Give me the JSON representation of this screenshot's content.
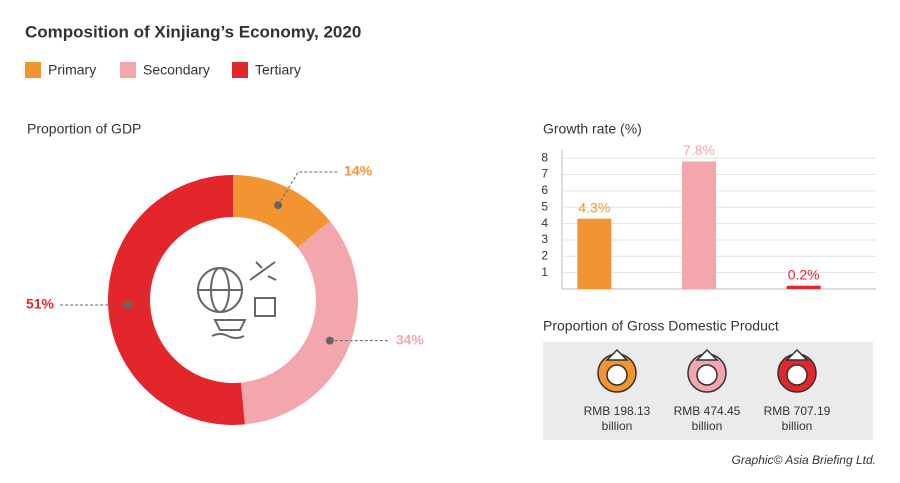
{
  "title": "Composition of Xinjiang’s Economy, 2020",
  "credit": "Graphic© Asia Briefing Ltd.",
  "chart_data": [
    {
      "type": "pie",
      "title": "Proportion of GDP",
      "categories": [
        "Primary",
        "Secondary",
        "Tertiary"
      ],
      "values": [
        14,
        34,
        51
      ],
      "value_labels": [
        "14%",
        "34%",
        "51%"
      ],
      "colors": [
        "#f39433",
        "#f4a6ad",
        "#e3262b"
      ],
      "donut": true
    },
    {
      "type": "bar",
      "title": "Growth rate (%)",
      "categories": [
        null,
        null,
        null
      ],
      "values": [
        4.3,
        7.8,
        0.2
      ],
      "value_labels": [
        "4.3%",
        "7.8%",
        "0.2%"
      ],
      "colors": [
        "#f39433",
        "#f4a6ad",
        "#e3262b"
      ],
      "ylim": [
        0,
        8.5
      ],
      "yticks": [
        1,
        2,
        3,
        4,
        5,
        6,
        7,
        8
      ],
      "grid": true
    },
    {
      "type": "pictograph",
      "title": "Proportion of Gross Domestic Product",
      "categories": [
        null,
        null,
        null
      ],
      "values": [
        198.13,
        474.45,
        707.19
      ],
      "value_labels": [
        "RMB 198.13 billion",
        "RMB 474.45 billion",
        "RMB 707.19 billion"
      ],
      "colors": [
        "#f39433",
        "#f4a6ad",
        "#e3262b"
      ]
    }
  ]
}
